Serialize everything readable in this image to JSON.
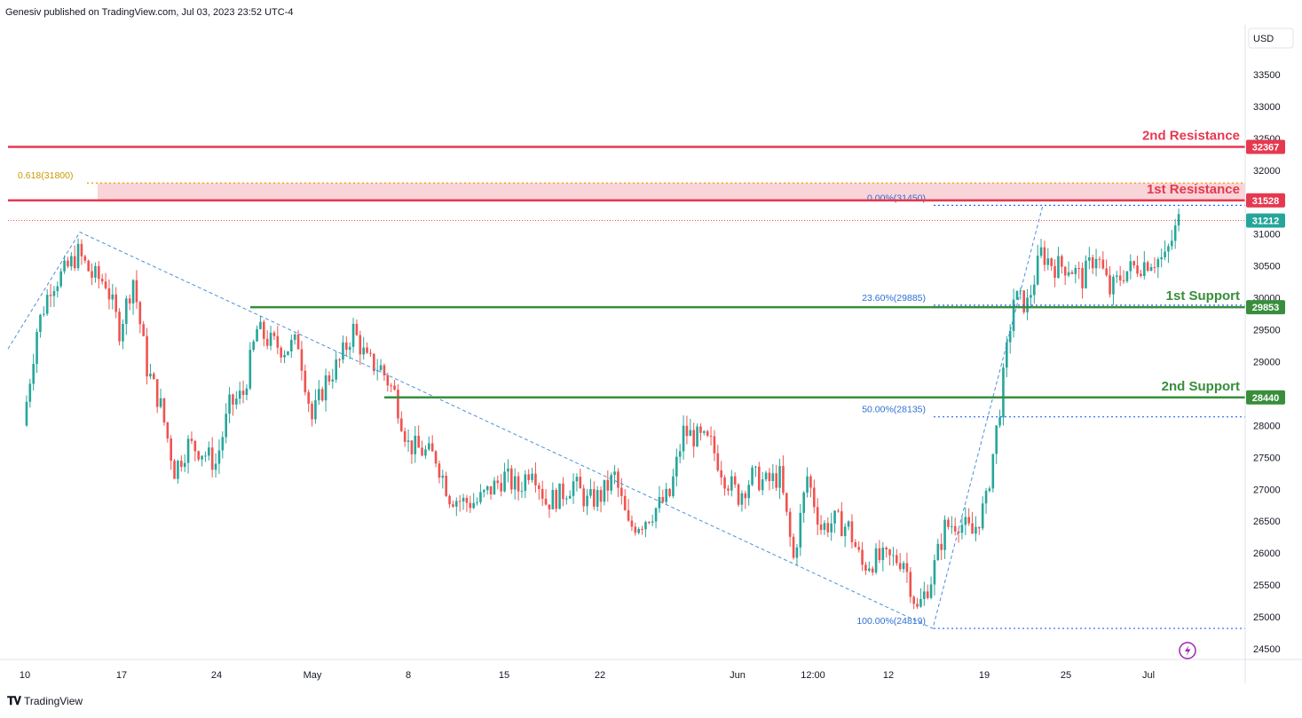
{
  "header": {
    "published": "Genesiv published on TradingView.com, Jul 03, 2023 23:52 UTC-4"
  },
  "currency_button": "USD",
  "footer": {
    "brand": "TradingView",
    "logo_icon": "tradingview-logo-icon"
  },
  "colors": {
    "bull": "#26a69a",
    "bear": "#ef5350",
    "resistance": "#e53950",
    "support": "#388e3c",
    "fib": "#2962ff",
    "fib_618": "#f5a623",
    "zone": "#f7c5cb",
    "last_price": "#26a69a",
    "lightning": "#9c27b0"
  },
  "chart_data": {
    "type": "candlestick",
    "symbol_quote": "USD",
    "ylim": [
      24300,
      34200
    ],
    "x_ticks": [
      "10",
      "17",
      "24",
      "May",
      "8",
      "15",
      "22",
      "Jun",
      "12:00",
      "12",
      "19",
      "25",
      "Jul"
    ],
    "y_ticks": [
      24500,
      25000,
      25500,
      26000,
      26500,
      27000,
      27500,
      28000,
      28500,
      29000,
      29500,
      30000,
      30500,
      31000,
      31500,
      32000,
      32500,
      33000,
      33500
    ],
    "last_price": 31212,
    "horizontal_levels": [
      {
        "label": "2nd Resistance",
        "value": 32367,
        "tag": "32367",
        "kind": "resistance"
      },
      {
        "label": "1st Resistance",
        "value": 31528,
        "tag": "31528",
        "kind": "resistance"
      },
      {
        "label": "1st Support",
        "value": 29853,
        "tag": "29853",
        "kind": "support"
      },
      {
        "label": "2nd Support",
        "value": 28440,
        "tag": "28440",
        "kind": "support"
      }
    ],
    "resistance_zone": [
      31528,
      31800
    ],
    "fib_extension": {
      "label": "0.618(31800)",
      "value": 31800
    },
    "fib_levels": [
      {
        "label": "0.00%(31450)",
        "value": 31450
      },
      {
        "label": "23.60%(29885)",
        "value": 29885
      },
      {
        "label": "50.00%(28135)",
        "value": 28135
      },
      {
        "label": "100.00%(24819)",
        "value": 24819
      }
    ],
    "trend_path": [
      [
        "Apr 08",
        29200
      ],
      [
        "Apr 14",
        31030
      ],
      [
        "Jun 15",
        24819
      ],
      [
        "Jun 23",
        31450
      ]
    ],
    "price_path": [
      [
        "Apr 10",
        28000
      ],
      [
        "Apr 11",
        29500
      ],
      [
        "Apr 12",
        30200
      ],
      [
        "Apr 13",
        30400
      ],
      [
        "Apr 14",
        30700
      ],
      [
        "Apr 15",
        30350
      ],
      [
        "Apr 16",
        30250
      ],
      [
        "Apr 17",
        29500
      ],
      [
        "Apr 18",
        30300
      ],
      [
        "Apr 19",
        28900
      ],
      [
        "Apr 20",
        28300
      ],
      [
        "Apr 21",
        27300
      ],
      [
        "Apr 22",
        27700
      ],
      [
        "Apr 23",
        27600
      ],
      [
        "Apr 24",
        27400
      ],
      [
        "Apr 25",
        28300
      ],
      [
        "Apr 26",
        28500
      ],
      [
        "Apr 27",
        29500
      ],
      [
        "Apr 28",
        29300
      ],
      [
        "Apr 29",
        29200
      ],
      [
        "Apr 30",
        29300
      ],
      [
        "May 01",
        28100
      ],
      [
        "May 02",
        28700
      ],
      [
        "May 03",
        29000
      ],
      [
        "May 04",
        29500
      ],
      [
        "May 05",
        29000
      ],
      [
        "May 06",
        28900
      ],
      [
        "May 07",
        28500
      ],
      [
        "May 08",
        27700
      ],
      [
        "May 09",
        27600
      ],
      [
        "May 10",
        27500
      ],
      [
        "May 11",
        26900
      ],
      [
        "May 12",
        26800
      ],
      [
        "May 13",
        26800
      ],
      [
        "May 14",
        27000
      ],
      [
        "May 15",
        27200
      ],
      [
        "May 16",
        27000
      ],
      [
        "May 17",
        27400
      ],
      [
        "May 18",
        26800
      ],
      [
        "May 19",
        26900
      ],
      [
        "May 20",
        27100
      ],
      [
        "May 21",
        26800
      ],
      [
        "May 22",
        26900
      ],
      [
        "May 23",
        27200
      ],
      [
        "May 24",
        26400
      ],
      [
        "May 25",
        26500
      ],
      [
        "May 26",
        26700
      ],
      [
        "May 27",
        26900
      ],
      [
        "May 28",
        27900
      ],
      [
        "May 29",
        27800
      ],
      [
        "May 30",
        27700
      ],
      [
        "May 31",
        27200
      ],
      [
        "Jun 01",
        26900
      ],
      [
        "Jun 02",
        27200
      ],
      [
        "Jun 03",
        27100
      ],
      [
        "Jun 04",
        27200
      ],
      [
        "Jun 05",
        25900
      ],
      [
        "Jun 06",
        27200
      ],
      [
        "Jun 07",
        26400
      ],
      [
        "Jun 08",
        26500
      ],
      [
        "Jun 09",
        26400
      ],
      [
        "Jun 10",
        25800
      ],
      [
        "Jun 11",
        25900
      ],
      [
        "Jun 12",
        25900
      ],
      [
        "Jun 13",
        25900
      ],
      [
        "Jun 14",
        25100
      ],
      [
        "Jun 15",
        25600
      ],
      [
        "Jun 16",
        26400
      ],
      [
        "Jun 17",
        26500
      ],
      [
        "Jun 18",
        26300
      ],
      [
        "Jun 19",
        26800
      ],
      [
        "Jun 20",
        28300
      ],
      [
        "Jun 21",
        30000
      ],
      [
        "Jun 22",
        29900
      ],
      [
        "Jun 23",
        30700
      ],
      [
        "Jun 24",
        30500
      ],
      [
        "Jun 25",
        30500
      ],
      [
        "Jun 26",
        30300
      ],
      [
        "Jun 27",
        30700
      ],
      [
        "Jun 28",
        30100
      ],
      [
        "Jun 29",
        30400
      ],
      [
        "Jun 30",
        30500
      ],
      [
        "Jul 01",
        30600
      ],
      [
        "Jul 02",
        30600
      ],
      [
        "Jul 03",
        31212
      ]
    ]
  }
}
